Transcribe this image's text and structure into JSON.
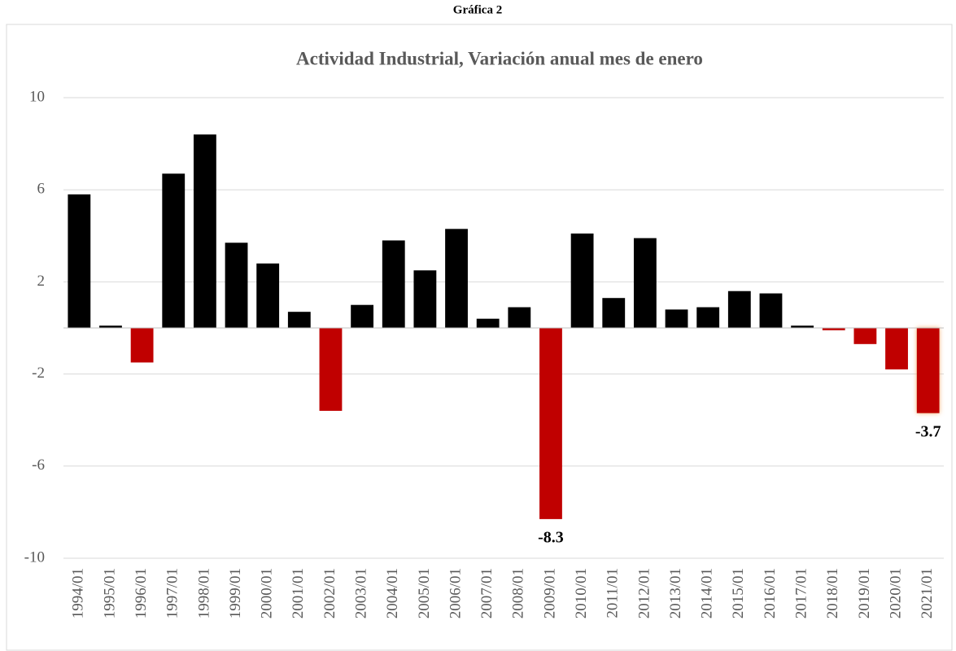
{
  "header": "Gráfica 2",
  "chart_data": {
    "type": "bar",
    "title": "Actividad Industrial, Variación anual mes de enero",
    "categories": [
      "1994/01",
      "1995/01",
      "1996/01",
      "1997/01",
      "1998/01",
      "1999/01",
      "2000/01",
      "2001/01",
      "2002/01",
      "2003/01",
      "2004/01",
      "2005/01",
      "2006/01",
      "2007/01",
      "2008/01",
      "2009/01",
      "2010/01",
      "2011/01",
      "2012/01",
      "2013/01",
      "2014/01",
      "2015/01",
      "2016/01",
      "2017/01",
      "2018/01",
      "2019/01",
      "2020/01",
      "2021/01"
    ],
    "values": [
      5.8,
      0.1,
      -1.5,
      6.7,
      8.4,
      3.7,
      2.8,
      0.7,
      -3.6,
      1.0,
      3.8,
      2.5,
      4.3,
      0.4,
      0.9,
      -8.3,
      4.1,
      1.3,
      3.9,
      0.8,
      0.9,
      1.6,
      1.5,
      0.1,
      -0.1,
      -0.7,
      -1.8,
      -3.7
    ],
    "value_labels": [
      null,
      null,
      null,
      null,
      null,
      null,
      null,
      null,
      null,
      null,
      null,
      null,
      null,
      null,
      null,
      "-8.3",
      null,
      null,
      null,
      null,
      null,
      null,
      null,
      null,
      null,
      null,
      null,
      "-3.7"
    ],
    "positive_color": "#000000",
    "negative_color": "#c00000",
    "ylim": [
      -10,
      10
    ],
    "yticks": [
      10,
      6,
      2,
      -2,
      -6,
      -10
    ],
    "grid": true
  }
}
